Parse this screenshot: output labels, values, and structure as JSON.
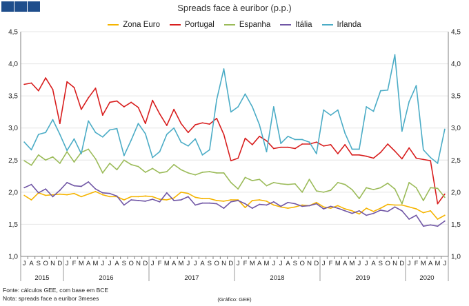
{
  "header": {
    "title": "Spreads face à euribor (p.p.)",
    "logo_color": "#1f4e8c"
  },
  "footer": {
    "source": "Fonte: cálculos GEE, com base em BCE",
    "note": "Nota: spreads face a euribor 3meses",
    "credit": "(Gráfico: GEE)"
  },
  "chart_data": {
    "type": "line",
    "title": "Spreads face à euribor (p.p.)",
    "ylim": [
      1.0,
      4.5
    ],
    "yticks": [
      "1,0",
      "1,5",
      "2,0",
      "2,5",
      "3,0",
      "3,5",
      "4,0",
      "4,5"
    ],
    "ytick_values": [
      1.0,
      1.5,
      2.0,
      2.5,
      3.0,
      3.5,
      4.0,
      4.5
    ],
    "grid": true,
    "legend_position": "top-center",
    "months": [
      "J",
      "A",
      "S",
      "O",
      "N",
      "D",
      "J",
      "F",
      "M",
      "A",
      "M",
      "J",
      "J",
      "A",
      "S",
      "O",
      "N",
      "D",
      "J",
      "F",
      "M",
      "A",
      "M",
      "J",
      "J",
      "A",
      "S",
      "O",
      "N",
      "D",
      "J",
      "F",
      "M",
      "A",
      "M",
      "J",
      "J",
      "A",
      "S",
      "O",
      "N",
      "D",
      "J",
      "F",
      "M",
      "A",
      "M",
      "J",
      "J",
      "A",
      "S",
      "O",
      "N",
      "D",
      "J",
      "F",
      "M",
      "A",
      "M",
      "J"
    ],
    "years": [
      {
        "label": "2015",
        "start": 0,
        "end": 6
      },
      {
        "label": "2016",
        "start": 6,
        "end": 18
      },
      {
        "label": "2017",
        "start": 18,
        "end": 30
      },
      {
        "label": "2018",
        "start": 30,
        "end": 42
      },
      {
        "label": "2019",
        "start": 42,
        "end": 54
      },
      {
        "label": "2020",
        "start": 54,
        "end": 60
      }
    ],
    "series": [
      {
        "name": "Zona Euro",
        "color": "#f5b400",
        "values": [
          1.95,
          1.88,
          1.99,
          1.95,
          1.96,
          1.97,
          1.96,
          1.98,
          1.93,
          1.97,
          2.01,
          1.96,
          1.93,
          1.93,
          1.88,
          1.93,
          1.93,
          1.94,
          1.93,
          1.89,
          1.88,
          1.91,
          2.0,
          1.98,
          1.92,
          1.9,
          1.9,
          1.87,
          1.86,
          1.88,
          1.88,
          1.76,
          1.87,
          1.88,
          1.86,
          1.8,
          1.77,
          1.75,
          1.77,
          1.8,
          1.79,
          1.84,
          1.77,
          1.75,
          1.79,
          1.74,
          1.71,
          1.66,
          1.75,
          1.7,
          1.75,
          1.81,
          1.8,
          1.8,
          1.77,
          1.74,
          1.68,
          1.71,
          1.58,
          1.64
        ]
      },
      {
        "name": "Portugal",
        "color": "#d81e1e",
        "values": [
          3.68,
          3.7,
          3.58,
          3.78,
          3.6,
          3.07,
          3.72,
          3.63,
          3.29,
          3.47,
          3.62,
          3.2,
          3.4,
          3.42,
          3.33,
          3.4,
          3.32,
          3.07,
          3.43,
          3.22,
          3.04,
          3.29,
          3.07,
          2.93,
          3.05,
          3.08,
          3.06,
          3.15,
          2.9,
          2.49,
          2.53,
          2.84,
          2.74,
          2.87,
          2.8,
          2.68,
          2.7,
          2.7,
          2.68,
          2.75,
          2.75,
          2.78,
          2.72,
          2.74,
          2.6,
          2.74,
          2.58,
          2.58,
          2.56,
          2.53,
          2.62,
          2.75,
          2.64,
          2.52,
          2.69,
          2.53,
          2.51,
          2.49,
          1.82,
          1.97
        ]
      },
      {
        "name": "Espanha",
        "color": "#9bbb59",
        "values": [
          2.49,
          2.42,
          2.58,
          2.5,
          2.55,
          2.45,
          2.63,
          2.47,
          2.62,
          2.67,
          2.52,
          2.3,
          2.45,
          2.35,
          2.5,
          2.43,
          2.4,
          2.31,
          2.37,
          2.3,
          2.32,
          2.43,
          2.35,
          2.3,
          2.27,
          2.31,
          2.32,
          2.3,
          2.3,
          2.15,
          2.05,
          2.23,
          2.18,
          2.2,
          2.1,
          2.15,
          2.13,
          2.12,
          2.13,
          2.0,
          2.2,
          2.02,
          2.0,
          2.03,
          2.15,
          2.12,
          2.04,
          1.9,
          2.07,
          2.04,
          2.07,
          2.14,
          2.05,
          1.82,
          2.15,
          2.07,
          1.87,
          2.07,
          2.06,
          1.92
        ]
      },
      {
        "name": "Itália",
        "color": "#7056a5",
        "values": [
          2.07,
          2.12,
          1.99,
          2.05,
          1.93,
          2.03,
          2.15,
          2.1,
          2.09,
          2.16,
          2.05,
          1.99,
          1.98,
          1.94,
          1.8,
          1.88,
          1.87,
          1.86,
          1.89,
          1.85,
          1.99,
          1.87,
          1.88,
          1.93,
          1.8,
          1.83,
          1.83,
          1.82,
          1.75,
          1.85,
          1.87,
          1.82,
          1.75,
          1.81,
          1.8,
          1.85,
          1.78,
          1.84,
          1.82,
          1.78,
          1.79,
          1.82,
          1.74,
          1.78,
          1.75,
          1.71,
          1.67,
          1.71,
          1.64,
          1.67,
          1.72,
          1.7,
          1.77,
          1.71,
          1.58,
          1.64,
          1.47,
          1.49,
          1.47,
          1.55
        ]
      },
      {
        "name": "Irlanda",
        "color": "#4bacc6",
        "values": [
          2.78,
          2.66,
          2.9,
          2.93,
          3.13,
          2.9,
          2.65,
          2.83,
          2.6,
          3.11,
          2.93,
          2.86,
          2.97,
          2.99,
          2.57,
          2.81,
          3.07,
          2.91,
          2.54,
          2.63,
          2.9,
          3.0,
          2.78,
          2.72,
          2.83,
          2.58,
          2.66,
          3.44,
          3.92,
          3.25,
          3.33,
          3.53,
          3.33,
          3.05,
          2.63,
          3.33,
          2.76,
          2.87,
          2.82,
          2.82,
          2.78,
          2.6,
          3.28,
          3.2,
          3.28,
          2.92,
          2.67,
          2.67,
          3.33,
          3.26,
          3.58,
          3.59,
          4.14,
          2.95,
          3.41,
          3.66,
          2.66,
          2.54,
          2.45,
          2.98
        ]
      }
    ]
  }
}
